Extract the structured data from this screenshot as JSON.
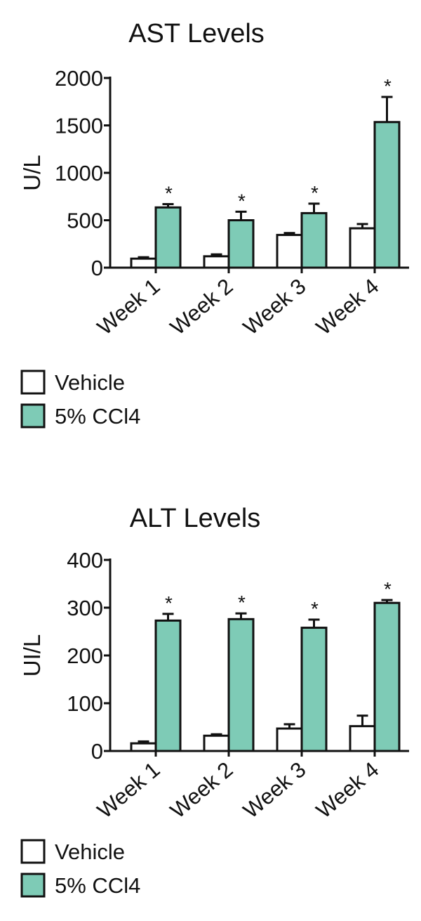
{
  "chart_data": [
    {
      "type": "bar",
      "title": "AST Levels",
      "ylabel": "U/L",
      "xlabel": "",
      "ylim": [
        0,
        2000
      ],
      "yticks": [
        0,
        500,
        1000,
        1500,
        2000
      ],
      "categories": [
        "Week 1",
        "Week 2",
        "Week 3",
        "Week 4"
      ],
      "series": [
        {
          "name": "Vehicle",
          "values": [
            95,
            120,
            345,
            415
          ],
          "errors": [
            15,
            20,
            20,
            45
          ],
          "color": "#ffffff"
        },
        {
          "name": "5% CCl4",
          "values": [
            635,
            500,
            575,
            1535
          ],
          "errors": [
            35,
            90,
            100,
            265
          ],
          "color": "#7ecbb6"
        }
      ],
      "significance": [
        "*",
        "*",
        "*",
        "*"
      ],
      "legend": {
        "position": "bottom-left",
        "items": [
          "Vehicle",
          "5% CCl4"
        ]
      }
    },
    {
      "type": "bar",
      "title": "ALT Levels",
      "ylabel": "UI/L",
      "xlabel": "",
      "ylim": [
        0,
        400
      ],
      "yticks": [
        0,
        100,
        200,
        300,
        400
      ],
      "categories": [
        "Week 1",
        "Week 2",
        "Week 3",
        "Week 4"
      ],
      "series": [
        {
          "name": "Vehicle",
          "values": [
            16,
            32,
            47,
            52
          ],
          "errors": [
            4,
            3,
            9,
            22
          ],
          "color": "#ffffff"
        },
        {
          "name": "5% CCl4",
          "values": [
            273,
            276,
            258,
            310
          ],
          "errors": [
            14,
            12,
            17,
            6
          ],
          "color": "#7ecbb6"
        }
      ],
      "significance": [
        "*",
        "*",
        "*",
        "*"
      ],
      "legend": {
        "position": "bottom-left",
        "items": [
          "Vehicle",
          "5% CCl4"
        ]
      }
    }
  ]
}
